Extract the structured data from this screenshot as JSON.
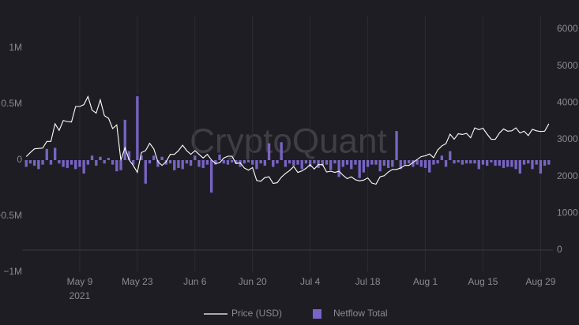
{
  "chart_data": {
    "type": "combo",
    "watermark": "CryptoQuant",
    "x": [
      "2021-04-26",
      "2021-04-27",
      "2021-04-28",
      "2021-04-29",
      "2021-04-30",
      "2021-05-01",
      "2021-05-02",
      "2021-05-03",
      "2021-05-04",
      "2021-05-05",
      "2021-05-06",
      "2021-05-07",
      "2021-05-08",
      "2021-05-09",
      "2021-05-10",
      "2021-05-11",
      "2021-05-12",
      "2021-05-13",
      "2021-05-14",
      "2021-05-15",
      "2021-05-16",
      "2021-05-17",
      "2021-05-18",
      "2021-05-19",
      "2021-05-20",
      "2021-05-21",
      "2021-05-22",
      "2021-05-23",
      "2021-05-24",
      "2021-05-25",
      "2021-05-26",
      "2021-05-27",
      "2021-05-28",
      "2021-05-29",
      "2021-05-30",
      "2021-05-31",
      "2021-06-01",
      "2021-06-02",
      "2021-06-03",
      "2021-06-04",
      "2021-06-05",
      "2021-06-06",
      "2021-06-07",
      "2021-06-08",
      "2021-06-09",
      "2021-06-10",
      "2021-06-11",
      "2021-06-12",
      "2021-06-13",
      "2021-06-14",
      "2021-06-15",
      "2021-06-16",
      "2021-06-17",
      "2021-06-18",
      "2021-06-19",
      "2021-06-20",
      "2021-06-21",
      "2021-06-22",
      "2021-06-23",
      "2021-06-24",
      "2021-06-25",
      "2021-06-26",
      "2021-06-27",
      "2021-06-28",
      "2021-06-29",
      "2021-06-30",
      "2021-07-01",
      "2021-07-02",
      "2021-07-03",
      "2021-07-04",
      "2021-07-05",
      "2021-07-06",
      "2021-07-07",
      "2021-07-08",
      "2021-07-09",
      "2021-07-10",
      "2021-07-11",
      "2021-07-12",
      "2021-07-13",
      "2021-07-14",
      "2021-07-15",
      "2021-07-16",
      "2021-07-17",
      "2021-07-18",
      "2021-07-19",
      "2021-07-20",
      "2021-07-21",
      "2021-07-22",
      "2021-07-23",
      "2021-07-24",
      "2021-07-25",
      "2021-07-26",
      "2021-07-27",
      "2021-07-28",
      "2021-07-29",
      "2021-07-30",
      "2021-07-31",
      "2021-08-01",
      "2021-08-02",
      "2021-08-03",
      "2021-08-04",
      "2021-08-05",
      "2021-08-06",
      "2021-08-07",
      "2021-08-08",
      "2021-08-09",
      "2021-08-10",
      "2021-08-11",
      "2021-08-12",
      "2021-08-13",
      "2021-08-14",
      "2021-08-15",
      "2021-08-16",
      "2021-08-17",
      "2021-08-18",
      "2021-08-19",
      "2021-08-20",
      "2021-08-21",
      "2021-08-22",
      "2021-08-23",
      "2021-08-24",
      "2021-08-25",
      "2021-08-26",
      "2021-08-27",
      "2021-08-28",
      "2021-08-29",
      "2021-08-30",
      "2021-08-31"
    ],
    "xlim": [
      "2021-04-25",
      "2021-09-01"
    ],
    "xticks": [
      {
        "value": "2021-05-09",
        "label": "May 9"
      },
      {
        "value": "2021-05-23",
        "label": "May 23"
      },
      {
        "value": "2021-06-06",
        "label": "Jun 6"
      },
      {
        "value": "2021-06-20",
        "label": "Jun 20"
      },
      {
        "value": "2021-07-04",
        "label": "Jul 4"
      },
      {
        "value": "2021-07-18",
        "label": "Jul 18"
      },
      {
        "value": "2021-08-01",
        "label": "Aug 1"
      },
      {
        "value": "2021-08-15",
        "label": "Aug 15"
      },
      {
        "value": "2021-08-29",
        "label": "Aug 29"
      }
    ],
    "x_year_label": "2021",
    "ylim": [
      -1000000,
      1000000
    ],
    "yticks": [
      {
        "value": -1000000,
        "label": "−1M"
      },
      {
        "value": -500000,
        "label": "−0.5M"
      },
      0,
      {
        "value": 500000,
        "label": "0.5M"
      },
      {
        "value": 1000000,
        "label": "1M"
      }
    ],
    "y2lim": [
      0,
      6000
    ],
    "y2ticks": [
      0,
      1000,
      2000,
      3000,
      4000,
      5000,
      6000
    ],
    "series": [
      {
        "name": "Price (USD)",
        "type": "line",
        "axis": "y2",
        "color": "#ffffff",
        "values": [
          2540,
          2650,
          2750,
          2760,
          2770,
          2950,
          2950,
          3430,
          3250,
          3520,
          3490,
          3480,
          3900,
          3900,
          3950,
          4170,
          3800,
          3720,
          4080,
          3650,
          3580,
          3300,
          3400,
          2440,
          2780,
          2450,
          2300,
          2110,
          2650,
          2700,
          2900,
          2750,
          2400,
          2300,
          2400,
          2600,
          2600,
          2700,
          2850,
          2700,
          2600,
          2700,
          2600,
          2500,
          2600,
          2450,
          2350,
          2370,
          2500,
          2550,
          2550,
          2350,
          2370,
          2230,
          2170,
          2240,
          1890,
          1870,
          1970,
          1990,
          1810,
          1830,
          1980,
          2080,
          2160,
          2270,
          2110,
          2150,
          2220,
          2320,
          2200,
          2320,
          2320,
          2120,
          2140,
          2110,
          2140,
          2030,
          1940,
          1990,
          1910,
          1880,
          1900,
          1960,
          1820,
          1790,
          1990,
          2020,
          2120,
          2190,
          2190,
          2230,
          2300,
          2300,
          2380,
          2460,
          2540,
          2560,
          2610,
          2510,
          2720,
          2830,
          2890,
          3150,
          3010,
          3160,
          3140,
          3170,
          3050,
          3320,
          3270,
          3310,
          3150,
          3010,
          3010,
          3180,
          3290,
          3230,
          3240,
          3320,
          3180,
          3230,
          3110,
          3280,
          3240,
          3220,
          3230,
          3430
        ]
      },
      {
        "name": "Netflow Total",
        "type": "bar",
        "color": "#7864c4",
        "values": [
          -60000,
          -30000,
          -50000,
          -80000,
          -40000,
          100000,
          -40000,
          110000,
          -30000,
          -60000,
          -70000,
          -40000,
          -80000,
          -60000,
          -120000,
          -40000,
          40000,
          -50000,
          30000,
          -30000,
          20000,
          -40000,
          -100000,
          -90000,
          360000,
          80000,
          -40000,
          570000,
          40000,
          -210000,
          -30000,
          40000,
          -60000,
          30000,
          -40000,
          -30000,
          -90000,
          -70000,
          -80000,
          -30000,
          -50000,
          40000,
          -60000,
          -70000,
          -40000,
          -290000,
          -40000,
          50000,
          -30000,
          -40000,
          -20000,
          -30000,
          -60000,
          -30000,
          -20000,
          -40000,
          -80000,
          -30000,
          -50000,
          150000,
          -60000,
          -30000,
          160000,
          -60000,
          -30000,
          -50000,
          -40000,
          -80000,
          -30000,
          -60000,
          -30000,
          -70000,
          -50000,
          -40000,
          -90000,
          -30000,
          -150000,
          -60000,
          -40000,
          -80000,
          -40000,
          -160000,
          -110000,
          -60000,
          -40000,
          -40000,
          -100000,
          -50000,
          -70000,
          -60000,
          260000,
          -80000,
          -40000,
          -30000,
          -60000,
          -40000,
          -60000,
          -70000,
          -110000,
          -40000,
          -30000,
          40000,
          -60000,
          80000,
          -30000,
          -20000,
          -40000,
          -30000,
          -30000,
          -30000,
          -80000,
          -40000,
          -50000,
          -20000,
          -50000,
          -50000,
          -70000,
          -60000,
          -60000,
          -80000,
          -120000,
          -40000,
          -30000,
          -80000,
          -40000,
          -120000,
          -50000,
          -40000
        ]
      }
    ]
  }
}
